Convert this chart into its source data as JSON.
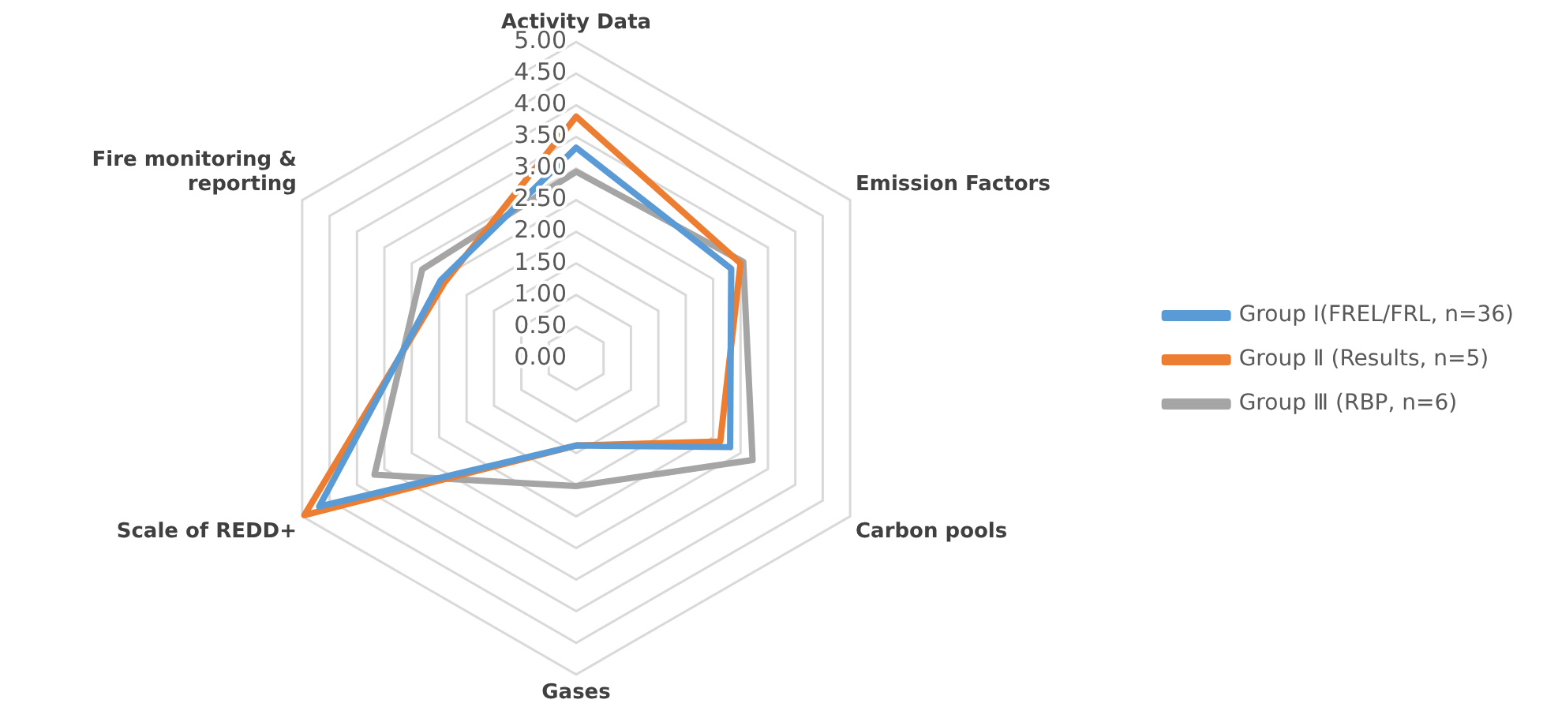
{
  "chart_data": {
    "type": "radar",
    "categories": [
      "Activity Data",
      "Emission Factors",
      "Carbon pools",
      "Gases",
      "Scale of REDD+",
      "Fire monitoring & reporting"
    ],
    "series": [
      {
        "name": "Group Ⅰ(FREL/FRL, n=36)",
        "color": "#5b9bd5",
        "values": [
          3.33,
          2.83,
          2.81,
          1.38,
          4.69,
          2.47
        ]
      },
      {
        "name": "Group Ⅱ (Results, n=5)",
        "color": "#ed7d31",
        "values": [
          3.82,
          3.0,
          2.63,
          1.38,
          4.96,
          2.4
        ]
      },
      {
        "name": "Group Ⅲ (RBP, n=6)",
        "color": "#a5a5a5",
        "values": [
          2.95,
          3.05,
          3.22,
          2.02,
          3.68,
          2.81
        ]
      }
    ],
    "ylim": [
      0,
      5
    ],
    "yticks": [
      {
        "value": 0,
        "label": "0.00"
      },
      {
        "value": 0.5,
        "label": "0.50"
      },
      {
        "value": 1,
        "label": "1.00"
      },
      {
        "value": 1.5,
        "label": "1.50"
      },
      {
        "value": 2,
        "label": "2.00"
      },
      {
        "value": 2.5,
        "label": "2.50"
      },
      {
        "value": 3,
        "label": "3.00"
      },
      {
        "value": 3.5,
        "label": "3.50"
      },
      {
        "value": 4,
        "label": "4.00"
      },
      {
        "value": 4.5,
        "label": "4.50"
      },
      {
        "value": 5,
        "label": "5.00"
      }
    ],
    "grid": true,
    "legend": "right",
    "marker": "none"
  }
}
